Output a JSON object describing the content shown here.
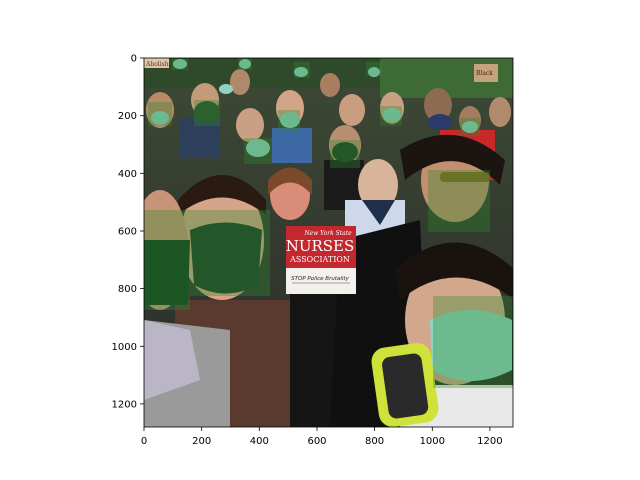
{
  "axes": {
    "x_ticks": [
      "0",
      "200",
      "400",
      "600",
      "800",
      "1000",
      "1200"
    ],
    "y_ticks": [
      "0",
      "200",
      "400",
      "600",
      "800",
      "1000",
      "1200"
    ],
    "x_range": [
      0,
      1280
    ],
    "y_range": [
      1280,
      0
    ]
  },
  "image": {
    "sign": {
      "line1": "New York State",
      "line2": "NURSES",
      "line3": "ASSOCIATION",
      "handwritten": "STOP Police Brutality"
    },
    "signs_background": [
      "Abolish",
      "Black"
    ],
    "mask_boxes_color": "#2e8b2e",
    "colors": {
      "sign_red": "#c4282f",
      "mask_light": "#8fd3c4",
      "mask_dark": "#1e3b28"
    }
  }
}
